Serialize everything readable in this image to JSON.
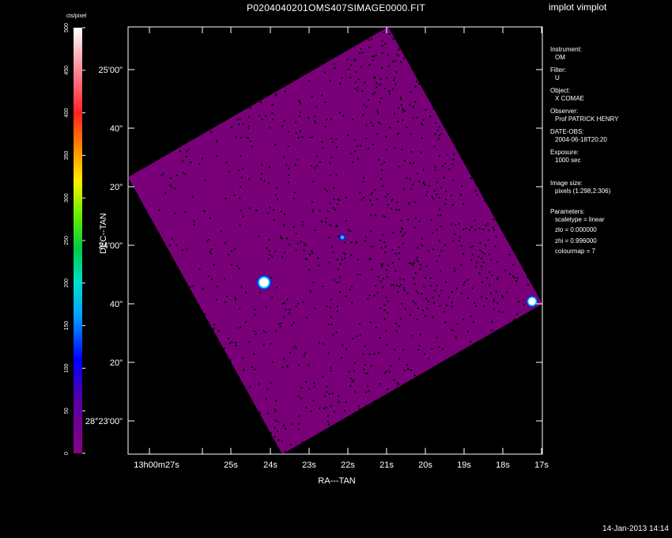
{
  "window": {
    "title": "P0204040201OMS407SIMAGE0000.FIT",
    "program": "implot vimplot",
    "timestamp": "14-Jan-2013 14:14"
  },
  "colorbar": {
    "label": "cts/pixel",
    "ticks": [
      "0",
      "50",
      "100",
      "150",
      "200",
      "250",
      "300",
      "350",
      "400",
      "450",
      "500"
    ]
  },
  "axes": {
    "xlabel": "RA---TAN",
    "ylabel": "DEC--TAN",
    "x_ticks": [
      "13h00m27s",
      "25s",
      "24s",
      "23s",
      "22s",
      "21s",
      "20s",
      "19s",
      "18s",
      "17s"
    ],
    "y_ticks": [
      "28°23'00\"",
      "20\"",
      "40\"",
      "24'00\"",
      "20\"",
      "40\"",
      "25'00\""
    ]
  },
  "info": {
    "instrument_label": "Instrument:",
    "instrument": "OM",
    "filter_label": "Filter:",
    "filter": "U",
    "object_label": "Object:",
    "object": "X COMAE",
    "observer_label": "Observer:",
    "observer": "Prof PATRICK HENRY",
    "date_label": "DATE-OBS:",
    "date": "2004-06-18T20:20",
    "exposure_label": "Exposure:",
    "exposure": "1000 sec",
    "imagesize_label": "Image size:",
    "imagesize": "pixels (1:298,2:306)",
    "params_label": "Parameters:",
    "scaletype": "scaletype = linear",
    "zlo": "zlo = 0.000000",
    "zhi": "zhi = 0.996000",
    "colourmap": "colourmap =   7"
  },
  "colors": {
    "image_fill": "#7a007a",
    "background": "#000000"
  }
}
